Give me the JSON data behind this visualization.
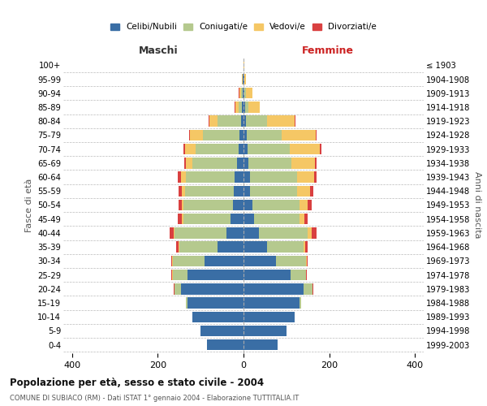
{
  "age_groups": [
    "0-4",
    "5-9",
    "10-14",
    "15-19",
    "20-24",
    "25-29",
    "30-34",
    "35-39",
    "40-44",
    "45-49",
    "50-54",
    "55-59",
    "60-64",
    "65-69",
    "70-74",
    "75-79",
    "80-84",
    "85-89",
    "90-94",
    "95-99",
    "100+"
  ],
  "birth_years": [
    "1999-2003",
    "1994-1998",
    "1989-1993",
    "1984-1988",
    "1979-1983",
    "1974-1978",
    "1969-1973",
    "1964-1968",
    "1959-1963",
    "1954-1958",
    "1949-1953",
    "1944-1948",
    "1939-1943",
    "1934-1938",
    "1929-1933",
    "1924-1928",
    "1919-1923",
    "1914-1918",
    "1909-1913",
    "1904-1908",
    "≤ 1903"
  ],
  "maschi": {
    "celibi": [
      85,
      100,
      120,
      130,
      145,
      130,
      90,
      60,
      40,
      30,
      25,
      22,
      20,
      15,
      12,
      10,
      5,
      4,
      2,
      1,
      0
    ],
    "coniugati": [
      0,
      0,
      0,
      5,
      15,
      35,
      75,
      90,
      120,
      110,
      115,
      115,
      115,
      105,
      100,
      85,
      55,
      7,
      3,
      1,
      0
    ],
    "vedovi": [
      0,
      0,
      0,
      0,
      1,
      1,
      1,
      2,
      3,
      3,
      4,
      6,
      10,
      15,
      25,
      30,
      20,
      8,
      5,
      1,
      0
    ],
    "divorziati": [
      0,
      0,
      0,
      0,
      1,
      2,
      3,
      5,
      10,
      10,
      8,
      8,
      8,
      3,
      3,
      2,
      1,
      1,
      1,
      0,
      0
    ]
  },
  "femmine": {
    "nubili": [
      80,
      100,
      120,
      130,
      140,
      110,
      75,
      55,
      35,
      25,
      20,
      15,
      15,
      12,
      10,
      8,
      5,
      4,
      2,
      1,
      0
    ],
    "coniugate": [
      0,
      0,
      0,
      5,
      20,
      35,
      70,
      85,
      115,
      105,
      110,
      110,
      110,
      100,
      98,
      80,
      50,
      8,
      3,
      1,
      0
    ],
    "vedove": [
      0,
      0,
      0,
      0,
      1,
      1,
      2,
      4,
      8,
      12,
      20,
      30,
      40,
      55,
      70,
      80,
      65,
      25,
      15,
      3,
      1
    ],
    "divorziate": [
      0,
      0,
      0,
      0,
      1,
      2,
      3,
      5,
      12,
      8,
      8,
      8,
      5,
      3,
      3,
      2,
      1,
      1,
      1,
      0,
      0
    ]
  },
  "colors": {
    "celibi": "#3A6EA5",
    "coniugati": "#B5C98E",
    "vedovi": "#F5C765",
    "divorziati": "#D94040"
  },
  "title_main": "Popolazione per età, sesso e stato civile - 2004",
  "title_sub": "COMUNE DI SUBIACO (RM) - Dati ISTAT 1° gennaio 2004 - Elaborazione TUTTITALIA.IT",
  "xlabel_left": "Maschi",
  "xlabel_right": "Femmine",
  "ylabel_left": "Fasce di età",
  "ylabel_right": "Anni di nascita",
  "legend_labels": [
    "Celibi/Nubili",
    "Coniugati/e",
    "Vedovi/e",
    "Divorziati/e"
  ],
  "xlim": 420,
  "background_color": "#ffffff",
  "grid_color": "#bbbbbb"
}
